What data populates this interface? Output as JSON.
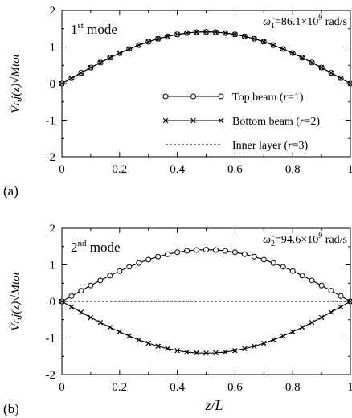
{
  "chart_data": [
    {
      "panel": "(a)",
      "type": "line",
      "mode_label": {
        "number": "1",
        "sup": "st",
        "text": "mode"
      },
      "omega": {
        "symbol": "ω̃",
        "sub": "1",
        "text": "=86.1×10",
        "exp": "9",
        "unit": "rad/s"
      },
      "ylabel": "Ṽr,j(z)√Mtot",
      "xlim": [
        0,
        1
      ],
      "ylim": [
        -2,
        2
      ],
      "xticks": [
        "0",
        "0.2",
        "0.4",
        "0.6",
        "0.8",
        "1"
      ],
      "yticks": [
        "2",
        "1",
        "0",
        "-1",
        "-2"
      ],
      "x": [
        0,
        0.0333,
        0.0667,
        0.1,
        0.1333,
        0.1667,
        0.2,
        0.2333,
        0.2667,
        0.3,
        0.3333,
        0.3667,
        0.4,
        0.4333,
        0.4667,
        0.5,
        0.5333,
        0.5667,
        0.6,
        0.6333,
        0.6667,
        0.7,
        0.7333,
        0.7667,
        0.8,
        0.8333,
        0.8667,
        0.9,
        0.9333,
        0.9667,
        1.0
      ],
      "series": [
        {
          "name": "Top beam (r=1)",
          "marker": "circle",
          "values": [
            0,
            0.148,
            0.294,
            0.437,
            0.575,
            0.707,
            0.831,
            0.946,
            1.051,
            1.144,
            1.225,
            1.292,
            1.345,
            1.383,
            1.407,
            1.414,
            1.407,
            1.383,
            1.345,
            1.292,
            1.225,
            1.144,
            1.051,
            0.946,
            0.831,
            0.707,
            0.575,
            0.437,
            0.294,
            0.148,
            0
          ]
        },
        {
          "name": "Bottom beam (r=2)",
          "marker": "cross",
          "values": [
            0,
            0.148,
            0.294,
            0.437,
            0.575,
            0.707,
            0.831,
            0.946,
            1.051,
            1.144,
            1.225,
            1.292,
            1.345,
            1.383,
            1.407,
            1.414,
            1.407,
            1.383,
            1.345,
            1.292,
            1.225,
            1.144,
            1.051,
            0.946,
            0.831,
            0.707,
            0.575,
            0.437,
            0.294,
            0.148,
            0
          ]
        },
        {
          "name": "Inner layer (r=3)",
          "marker": "none",
          "values": [
            0,
            0.148,
            0.294,
            0.437,
            0.575,
            0.707,
            0.831,
            0.946,
            1.051,
            1.144,
            1.225,
            1.292,
            1.345,
            1.383,
            1.407,
            1.414,
            1.407,
            1.383,
            1.345,
            1.292,
            1.225,
            1.144,
            1.051,
            0.946,
            0.831,
            0.707,
            0.575,
            0.437,
            0.294,
            0.148,
            0
          ]
        }
      ],
      "legend": [
        {
          "prefix": "Top beam (",
          "var": "r",
          "suffix": "=1)",
          "marker": "circle",
          "style": "solid"
        },
        {
          "prefix": "Bottom beam (",
          "var": "r",
          "suffix": "=2)",
          "marker": "cross",
          "style": "solid"
        },
        {
          "prefix": "Inner layer (",
          "var": "r",
          "suffix": "=3)",
          "marker": "none",
          "style": "dashed"
        }
      ]
    },
    {
      "panel": "(b)",
      "type": "line",
      "mode_label": {
        "number": "2",
        "sup": "nd",
        "text": "mode"
      },
      "omega": {
        "symbol": "ω̃",
        "sub": "2",
        "text": "=94.6×10",
        "exp": "9",
        "unit": "rad/s"
      },
      "ylabel": "Ṽr,j(z)√Mtot",
      "xlabel": "z/L",
      "xlim": [
        0,
        1
      ],
      "ylim": [
        -2,
        2
      ],
      "xticks": [
        "0",
        "0.2",
        "0.4",
        "0.6",
        "0.8",
        "1"
      ],
      "yticks": [
        "2",
        "1",
        "0",
        "-1",
        "-2"
      ],
      "x": [
        0,
        0.0333,
        0.0667,
        0.1,
        0.1333,
        0.1667,
        0.2,
        0.2333,
        0.2667,
        0.3,
        0.3333,
        0.3667,
        0.4,
        0.4333,
        0.4667,
        0.5,
        0.5333,
        0.5667,
        0.6,
        0.6333,
        0.6667,
        0.7,
        0.7333,
        0.7667,
        0.8,
        0.8333,
        0.8667,
        0.9,
        0.9333,
        0.9667,
        1.0
      ],
      "series": [
        {
          "name": "Top beam (r=1)",
          "marker": "circle",
          "values": [
            0,
            0.148,
            0.294,
            0.437,
            0.575,
            0.707,
            0.831,
            0.946,
            1.051,
            1.144,
            1.225,
            1.292,
            1.345,
            1.383,
            1.407,
            1.414,
            1.407,
            1.383,
            1.345,
            1.292,
            1.225,
            1.144,
            1.051,
            0.946,
            0.831,
            0.707,
            0.575,
            0.437,
            0.294,
            0.148,
            0
          ]
        },
        {
          "name": "Bottom beam (r=2)",
          "marker": "cross",
          "values": [
            0,
            -0.148,
            -0.294,
            -0.437,
            -0.575,
            -0.707,
            -0.831,
            -0.946,
            -1.051,
            -1.144,
            -1.225,
            -1.292,
            -1.345,
            -1.383,
            -1.407,
            -1.414,
            -1.407,
            -1.383,
            -1.345,
            -1.292,
            -1.225,
            -1.144,
            -1.051,
            -0.946,
            -0.831,
            -0.707,
            -0.575,
            -0.437,
            -0.294,
            -0.148,
            0
          ]
        },
        {
          "name": "Inner layer (r=3)",
          "marker": "none",
          "values": [
            0,
            0,
            0,
            0,
            0,
            0,
            0,
            0,
            0,
            0,
            0,
            0,
            0,
            0,
            0,
            0,
            0,
            0,
            0,
            0,
            0,
            0,
            0,
            0,
            0,
            0,
            0,
            0,
            0,
            0,
            0
          ]
        }
      ]
    }
  ]
}
